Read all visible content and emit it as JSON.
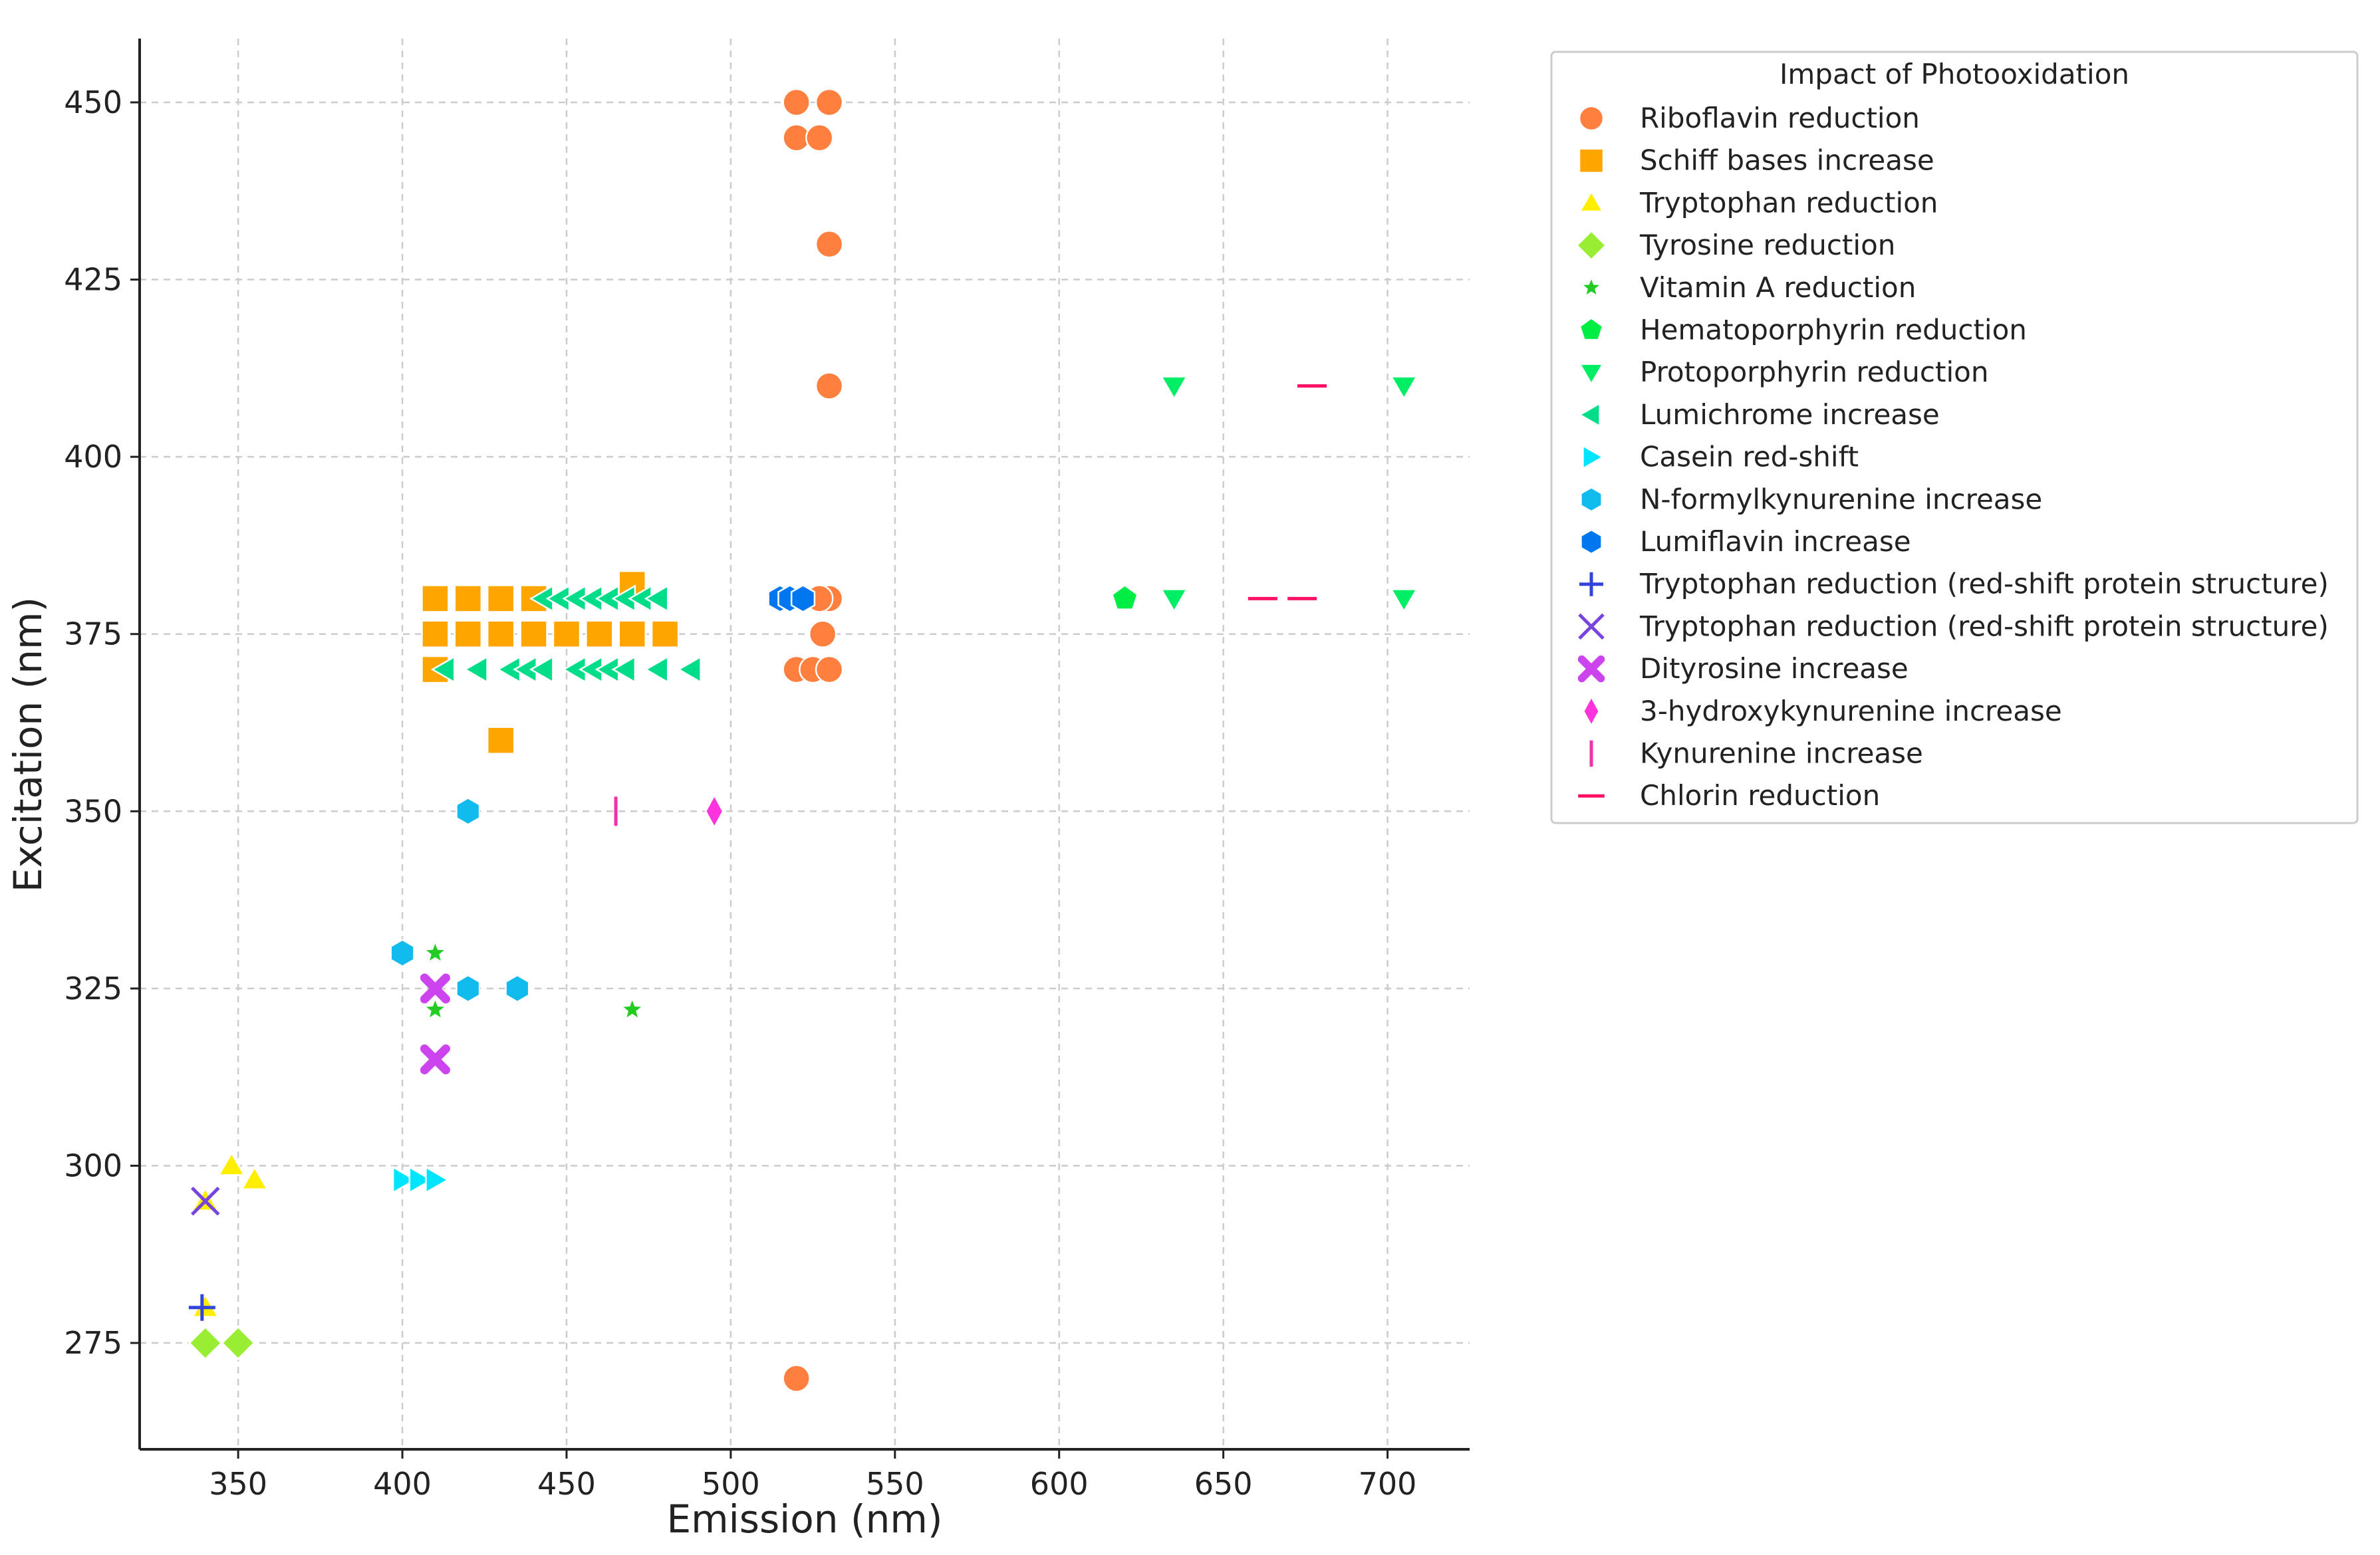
{
  "chart_data": {
    "type": "scatter",
    "title": "",
    "xlabel": "Emission (nm)",
    "ylabel": "Excitation (nm)",
    "xlim": [
      320,
      725
    ],
    "ylim": [
      260,
      459
    ],
    "xticks": [
      350,
      400,
      450,
      500,
      550,
      600,
      650,
      700
    ],
    "yticks": [
      275,
      300,
      325,
      350,
      375,
      400,
      425,
      450
    ],
    "grid": true,
    "legend_title": "Impact of Photooxidation",
    "legend_position": "top-right, outside plot",
    "series": [
      {
        "name": "Riboflavin reduction",
        "color": "#ff7f3f",
        "marker": "circle",
        "points": [
          [
            520,
            450
          ],
          [
            530,
            450
          ],
          [
            520,
            445
          ],
          [
            527,
            445
          ],
          [
            530,
            430
          ],
          [
            530,
            410
          ],
          [
            530,
            380
          ],
          [
            527,
            380
          ],
          [
            528,
            375
          ],
          [
            520,
            370
          ],
          [
            525,
            370
          ],
          [
            530,
            370
          ],
          [
            520,
            270
          ]
        ]
      },
      {
        "name": "Schiff bases increase",
        "color": "#ffa500",
        "marker": "square",
        "points": [
          [
            410,
            380
          ],
          [
            420,
            380
          ],
          [
            430,
            380
          ],
          [
            440,
            380
          ],
          [
            470,
            382
          ],
          [
            410,
            375
          ],
          [
            420,
            375
          ],
          [
            430,
            375
          ],
          [
            440,
            375
          ],
          [
            450,
            375
          ],
          [
            460,
            375
          ],
          [
            470,
            375
          ],
          [
            480,
            375
          ],
          [
            410,
            370
          ],
          [
            430,
            360
          ]
        ]
      },
      {
        "name": "Tryptophan reduction",
        "color": "#ffee00",
        "marker": "triangle-up",
        "points": [
          [
            348,
            300
          ],
          [
            355,
            298
          ],
          [
            340,
            295
          ],
          [
            340,
            280
          ]
        ]
      },
      {
        "name": "Tyrosine reduction",
        "color": "#99ee33",
        "marker": "diamond",
        "points": [
          [
            340,
            275
          ],
          [
            350,
            275
          ]
        ]
      },
      {
        "name": "Vitamin A reduction",
        "color": "#22cc22",
        "marker": "star",
        "points": [
          [
            410,
            330
          ],
          [
            410,
            322
          ],
          [
            470,
            322
          ]
        ]
      },
      {
        "name": "Hematoporphyrin reduction",
        "color": "#00ee44",
        "marker": "pentagon",
        "points": [
          [
            620,
            380
          ]
        ]
      },
      {
        "name": "Protoporphyrin reduction",
        "color": "#00ee66",
        "marker": "triangle-down",
        "points": [
          [
            635,
            410
          ],
          [
            705,
            410
          ],
          [
            635,
            380
          ],
          [
            705,
            380
          ]
        ]
      },
      {
        "name": "Lumichrome increase",
        "color": "#00dd88",
        "marker": "triangle-left",
        "points": [
          [
            443,
            380
          ],
          [
            448,
            380
          ],
          [
            453,
            380
          ],
          [
            458,
            380
          ],
          [
            463,
            380
          ],
          [
            468,
            380
          ],
          [
            473,
            380
          ],
          [
            478,
            380
          ],
          [
            413,
            370
          ],
          [
            423,
            370
          ],
          [
            433,
            370
          ],
          [
            438,
            370
          ],
          [
            443,
            370
          ],
          [
            453,
            370
          ],
          [
            458,
            370
          ],
          [
            463,
            370
          ],
          [
            468,
            370
          ],
          [
            478,
            370
          ],
          [
            488,
            370
          ]
        ]
      },
      {
        "name": "Casein red-shift",
        "color": "#00e5ff",
        "marker": "triangle-right",
        "points": [
          [
            400,
            298
          ],
          [
            405,
            298
          ],
          [
            410,
            298
          ]
        ]
      },
      {
        "name": "N-formylkynurenine increase",
        "color": "#11bbee",
        "marker": "hexagon",
        "points": [
          [
            420,
            350
          ],
          [
            400,
            330
          ],
          [
            420,
            325
          ],
          [
            435,
            325
          ]
        ]
      },
      {
        "name": "Lumiflavin increase",
        "color": "#0077ee",
        "marker": "hexagon",
        "points": [
          [
            515,
            380
          ],
          [
            518,
            380
          ],
          [
            522,
            380
          ]
        ]
      },
      {
        "name": "Tryptophan reduction (red-shift protein structure)",
        "color": "#3344dd",
        "marker": "plus",
        "points": [
          [
            339,
            280
          ]
        ]
      },
      {
        "name": "Tryptophan reduction  (red-shift protein structure)",
        "color": "#7744dd",
        "marker": "x",
        "points": [
          [
            340,
            295
          ]
        ]
      },
      {
        "name": "Dityrosine increase",
        "color": "#cc44ee",
        "marker": "x-filled",
        "points": [
          [
            410,
            325
          ],
          [
            410,
            315
          ]
        ]
      },
      {
        "name": "3-hydroxykynurenine increase",
        "color": "#ff33dd",
        "marker": "thin-diamond",
        "points": [
          [
            495,
            350
          ]
        ]
      },
      {
        "name": "Kynurenine increase",
        "color": "#ee33aa",
        "marker": "vline",
        "points": [
          [
            465,
            350
          ]
        ]
      },
      {
        "name": "Chlorin reduction",
        "color": "#ff1166",
        "marker": "hline",
        "points": [
          [
            677,
            410
          ],
          [
            662,
            380
          ],
          [
            674,
            380
          ]
        ]
      }
    ]
  }
}
